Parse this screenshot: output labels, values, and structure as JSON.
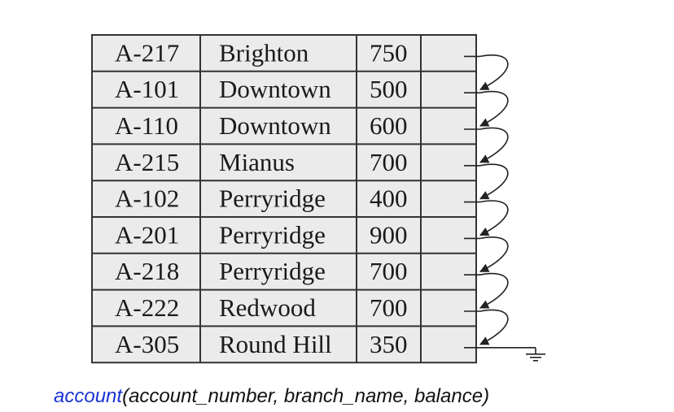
{
  "records": [
    {
      "account_number": "A-217",
      "branch_name": "Brighton",
      "balance": "750"
    },
    {
      "account_number": "A-101",
      "branch_name": "Downtown",
      "balance": "500"
    },
    {
      "account_number": "A-110",
      "branch_name": "Downtown",
      "balance": "600"
    },
    {
      "account_number": "A-215",
      "branch_name": "Mianus",
      "balance": "700"
    },
    {
      "account_number": "A-102",
      "branch_name": "Perryridge",
      "balance": "400"
    },
    {
      "account_number": "A-201",
      "branch_name": "Perryridge",
      "balance": "900"
    },
    {
      "account_number": "A-218",
      "branch_name": "Perryridge",
      "balance": "700"
    },
    {
      "account_number": "A-222",
      "branch_name": "Redwood",
      "balance": "700"
    },
    {
      "account_number": "A-305",
      "branch_name": "Round Hill",
      "balance": "350"
    }
  ],
  "caption": {
    "relation": "account",
    "open": "(",
    "attr1": "account_number",
    "sep1": ", ",
    "attr2": "branch_name",
    "sep2": ", ",
    "attr3": "balance",
    "close": ")"
  },
  "colors": {
    "table_fill": "#ebebeb",
    "border": "#333333",
    "relation_name": "#1a33d6"
  }
}
